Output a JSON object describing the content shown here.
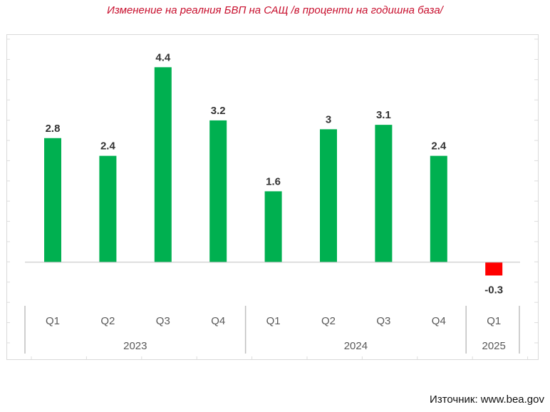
{
  "title": "Изменение на реалния БВП на САЩ /в проценти на годишна база/",
  "source": "Източник: www.bea.gov",
  "colors": {
    "positive": "#00b050",
    "negative": "#ff0000",
    "title": "#c8102e",
    "axis": "#bfbfbf"
  },
  "chart_data": {
    "type": "bar",
    "title": "Изменение на реалния БВП на САЩ /в проценти на годишна база/",
    "xlabel": "",
    "ylabel": "",
    "categories": [
      "Q1",
      "Q2",
      "Q3",
      "Q4",
      "Q1",
      "Q2",
      "Q3",
      "Q4",
      "Q1"
    ],
    "groups": [
      {
        "label": "2023",
        "count": 4
      },
      {
        "label": "2024",
        "count": 4
      },
      {
        "label": "2025",
        "count": 1
      }
    ],
    "values": [
      2.8,
      2.4,
      4.4,
      3.2,
      1.6,
      3,
      3.1,
      2.4,
      -0.3
    ],
    "data_labels": [
      "2.8",
      "2.4",
      "4.4",
      "3.2",
      "1.6",
      "3",
      "3.1",
      "2.4",
      "-0.3"
    ],
    "ylim": [
      -1.0,
      5.0
    ],
    "grid": false,
    "legend": "none"
  }
}
